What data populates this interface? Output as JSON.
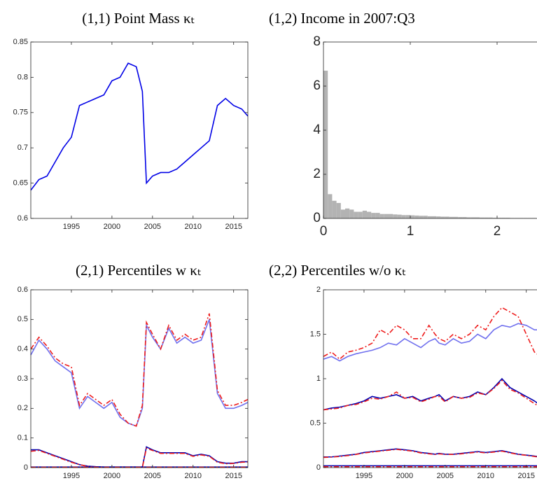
{
  "chart_data": [
    {
      "type": "line",
      "title": "(1,1) Point Mass κₜ",
      "x": [
        1990,
        1991,
        1992,
        1993,
        1994,
        1995,
        1996,
        1997,
        1998,
        1999,
        2000,
        2001,
        2002,
        2003,
        2003.75,
        2004.25,
        2005,
        2006,
        2007,
        2008,
        2009,
        2010,
        2011,
        2012,
        2013,
        2014,
        2015,
        2016,
        2016.75
      ],
      "series": [
        {
          "color": "#0000e6",
          "line_style": "solid",
          "values": [
            0.64,
            0.655,
            0.66,
            0.68,
            0.7,
            0.715,
            0.76,
            0.765,
            0.77,
            0.775,
            0.795,
            0.8,
            0.82,
            0.815,
            0.78,
            0.65,
            0.66,
            0.665,
            0.665,
            0.67,
            0.68,
            0.69,
            0.7,
            0.71,
            0.76,
            0.77,
            0.76,
            0.755,
            0.745
          ]
        }
      ],
      "xlim": [
        1990,
        2016.75
      ],
      "xticks": [
        1995,
        2000,
        2005,
        2010,
        2015
      ],
      "ylim": [
        0.6,
        0.85
      ],
      "yticks": [
        0.6,
        0.65,
        0.7,
        0.75,
        0.8,
        0.85
      ]
    },
    {
      "type": "histogram",
      "title": "(1,2) Income in 2007:Q3",
      "color": "#b3b3b3",
      "bins": [
        0,
        0.05,
        0.1,
        0.15,
        0.2,
        0.25,
        0.3,
        0.35,
        0.4,
        0.45,
        0.5,
        0.55,
        0.6,
        0.65,
        0.7,
        0.75,
        0.8,
        0.85,
        0.9,
        0.95,
        1,
        1.05,
        1.1,
        1.15,
        1.2,
        1.25,
        1.3,
        1.35,
        1.4,
        1.45,
        1.5,
        1.55,
        1.6,
        1.65,
        1.7,
        1.75,
        1.8,
        1.85,
        1.9,
        1.95,
        2,
        2.05,
        2.1,
        2.15,
        2.2,
        2.25,
        2.3,
        2.35,
        2.4,
        2.45
      ],
      "values": [
        6.7,
        1.1,
        0.8,
        0.7,
        0.4,
        0.45,
        0.4,
        0.3,
        0.3,
        0.35,
        0.3,
        0.25,
        0.25,
        0.2,
        0.2,
        0.2,
        0.18,
        0.17,
        0.15,
        0.15,
        0.14,
        0.13,
        0.12,
        0.12,
        0.1,
        0.1,
        0.09,
        0.08,
        0.08,
        0.07,
        0.07,
        0.06,
        0.06,
        0.05,
        0.05,
        0.05,
        0.04,
        0.04,
        0.04,
        0.03,
        0.03,
        0.03,
        0.03,
        0.02,
        0.02,
        0.02,
        0.02,
        0.02,
        0.02
      ],
      "xlim": [
        0,
        2.5
      ],
      "xticks": [
        0,
        1,
        2
      ],
      "ylim": [
        0,
        8
      ],
      "yticks": [
        0,
        2,
        4,
        6,
        8
      ]
    },
    {
      "type": "line",
      "title": "(2,1) Percentiles w κₜ",
      "x": [
        1990,
        1991,
        1992,
        1993,
        1994,
        1995,
        1996,
        1997,
        1998,
        1999,
        2000,
        2001,
        2002,
        2003,
        2003.75,
        2004.25,
        2005,
        2006,
        2007,
        2008,
        2009,
        2010,
        2011,
        2012,
        2013,
        2014,
        2015,
        2016,
        2016.75
      ],
      "series": [
        {
          "color": "#7070ee",
          "line_style": "solid",
          "values": [
            0.38,
            0.43,
            0.4,
            0.36,
            0.34,
            0.32,
            0.2,
            0.24,
            0.22,
            0.2,
            0.22,
            0.17,
            0.15,
            0.14,
            0.2,
            0.48,
            0.44,
            0.4,
            0.47,
            0.42,
            0.44,
            0.42,
            0.43,
            0.5,
            0.25,
            0.2,
            0.2,
            0.21,
            0.22
          ]
        },
        {
          "color": "#ee1c1c",
          "line_style": "dash-dot",
          "values": [
            0.4,
            0.44,
            0.41,
            0.37,
            0.35,
            0.34,
            0.21,
            0.25,
            0.23,
            0.21,
            0.23,
            0.18,
            0.15,
            0.14,
            0.21,
            0.49,
            0.45,
            0.4,
            0.48,
            0.43,
            0.45,
            0.43,
            0.44,
            0.52,
            0.26,
            0.21,
            0.21,
            0.22,
            0.23
          ]
        },
        {
          "color": "#0000b0",
          "line_style": "solid",
          "values": [
            0.06,
            0.06,
            0.05,
            0.04,
            0.03,
            0.02,
            0.01,
            0.005,
            0.003,
            0.002,
            0.002,
            0.002,
            0.002,
            0.002,
            0.002,
            0.07,
            0.06,
            0.05,
            0.05,
            0.05,
            0.05,
            0.04,
            0.045,
            0.04,
            0.02,
            0.015,
            0.015,
            0.02,
            0.02
          ]
        },
        {
          "color": "#ee1c1c",
          "line_style": "dash-dot",
          "values": [
            0.055,
            0.058,
            0.048,
            0.038,
            0.028,
            0.018,
            0.01,
            0.004,
            0.002,
            0.001,
            0.001,
            0.001,
            0.001,
            0.001,
            0.001,
            0.065,
            0.058,
            0.048,
            0.048,
            0.048,
            0.048,
            0.038,
            0.043,
            0.038,
            0.018,
            0.013,
            0.014,
            0.018,
            0.019
          ]
        },
        {
          "color": "#0000b0",
          "line_style": "solid",
          "values": [
            0.002,
            0.002,
            0.002,
            0.002,
            0.002,
            0.002,
            0.002,
            0.002,
            0.002,
            0.002,
            0.002,
            0.002,
            0.002,
            0.002,
            0.002,
            0.002,
            0.002,
            0.002,
            0.002,
            0.002,
            0.002,
            0.002,
            0.002,
            0.002,
            0.002,
            0.002,
            0.002,
            0.002,
            0.002
          ]
        },
        {
          "color": "#ee1c1c",
          "line_style": "dash-dot",
          "values": [
            0.001,
            0.001,
            0.001,
            0.001,
            0.001,
            0.001,
            0.001,
            0.001,
            0.001,
            0.001,
            0.001,
            0.001,
            0.001,
            0.001,
            0.001,
            0.001,
            0.001,
            0.001,
            0.001,
            0.001,
            0.001,
            0.001,
            0.001,
            0.001,
            0.001,
            0.001,
            0.001,
            0.001,
            0.001
          ]
        }
      ],
      "xlim": [
        1990,
        2016.75
      ],
      "xticks": [
        1995,
        2000,
        2005,
        2010,
        2015
      ],
      "ylim": [
        0,
        0.6
      ],
      "yticks": [
        0,
        0.1,
        0.2,
        0.3,
        0.4,
        0.5,
        0.6
      ]
    },
    {
      "type": "line",
      "title": "(2,2) Percentiles w/o κₜ",
      "x": [
        1990,
        1991,
        1992,
        1993,
        1994,
        1995,
        1996,
        1997,
        1998,
        1999,
        2000,
        2001,
        2002,
        2003,
        2003.75,
        2004.25,
        2005,
        2006,
        2007,
        2008,
        2009,
        2010,
        2011,
        2012,
        2013,
        2014,
        2015,
        2016,
        2016.75
      ],
      "series": [
        {
          "color": "#7070ee",
          "line_style": "solid",
          "values": [
            1.22,
            1.25,
            1.2,
            1.25,
            1.28,
            1.3,
            1.32,
            1.35,
            1.4,
            1.38,
            1.45,
            1.4,
            1.35,
            1.42,
            1.45,
            1.4,
            1.38,
            1.45,
            1.4,
            1.42,
            1.5,
            1.45,
            1.55,
            1.6,
            1.58,
            1.62,
            1.6,
            1.55,
            1.55
          ]
        },
        {
          "color": "#ee1c1c",
          "line_style": "dash-dot",
          "values": [
            1.25,
            1.3,
            1.22,
            1.3,
            1.32,
            1.35,
            1.4,
            1.55,
            1.5,
            1.6,
            1.55,
            1.45,
            1.45,
            1.6,
            1.5,
            1.45,
            1.42,
            1.5,
            1.45,
            1.5,
            1.6,
            1.55,
            1.7,
            1.8,
            1.75,
            1.7,
            1.5,
            1.3,
            1.25
          ]
        },
        {
          "color": "#0000b0",
          "line_style": "solid",
          "values": [
            0.65,
            0.67,
            0.68,
            0.7,
            0.72,
            0.75,
            0.8,
            0.78,
            0.8,
            0.82,
            0.78,
            0.8,
            0.75,
            0.78,
            0.8,
            0.82,
            0.75,
            0.8,
            0.78,
            0.8,
            0.85,
            0.82,
            0.9,
            1.0,
            0.9,
            0.85,
            0.8,
            0.75,
            0.7
          ]
        },
        {
          "color": "#ee1c1c",
          "line_style": "dash-dot",
          "values": [
            0.65,
            0.66,
            0.67,
            0.7,
            0.71,
            0.74,
            0.78,
            0.77,
            0.8,
            0.85,
            0.78,
            0.79,
            0.74,
            0.77,
            0.8,
            0.8,
            0.74,
            0.8,
            0.78,
            0.79,
            0.84,
            0.82,
            0.89,
            0.98,
            0.88,
            0.84,
            0.78,
            0.72,
            0.68
          ]
        },
        {
          "color": "#0000b0",
          "line_style": "solid",
          "values": [
            0.12,
            0.12,
            0.13,
            0.14,
            0.15,
            0.17,
            0.18,
            0.19,
            0.2,
            0.21,
            0.2,
            0.19,
            0.17,
            0.16,
            0.15,
            0.16,
            0.15,
            0.15,
            0.16,
            0.17,
            0.18,
            0.17,
            0.18,
            0.19,
            0.17,
            0.15,
            0.14,
            0.13,
            0.12
          ]
        },
        {
          "color": "#ee1c1c",
          "line_style": "dash-dot",
          "values": [
            0.115,
            0.118,
            0.125,
            0.135,
            0.148,
            0.165,
            0.175,
            0.185,
            0.195,
            0.205,
            0.195,
            0.185,
            0.165,
            0.155,
            0.148,
            0.155,
            0.148,
            0.148,
            0.155,
            0.165,
            0.175,
            0.165,
            0.175,
            0.185,
            0.165,
            0.148,
            0.138,
            0.125,
            0.115
          ]
        },
        {
          "color": "#0000b0",
          "line_style": "solid",
          "values": [
            0.02,
            0.02,
            0.02,
            0.02,
            0.02,
            0.02,
            0.02,
            0.02,
            0.02,
            0.02,
            0.02,
            0.02,
            0.02,
            0.02,
            0.02,
            0.02,
            0.02,
            0.02,
            0.02,
            0.02,
            0.02,
            0.02,
            0.02,
            0.02,
            0.02,
            0.02,
            0.02,
            0.02,
            0.02
          ]
        },
        {
          "color": "#ee1c1c",
          "line_style": "dash-dot",
          "values": [
            0.01,
            0.01,
            0.01,
            0.01,
            0.01,
            0.01,
            0.01,
            0.01,
            0.01,
            0.01,
            0.01,
            0.01,
            0.01,
            0.01,
            0.01,
            0.01,
            0.01,
            0.01,
            0.01,
            0.01,
            0.01,
            0.01,
            0.01,
            0.01,
            0.01,
            0.01,
            0.01,
            0.01,
            0.01
          ]
        }
      ],
      "xlim": [
        1990,
        2016.75
      ],
      "xticks": [
        1995,
        2000,
        2005,
        2010,
        2015
      ],
      "ylim": [
        0,
        2
      ],
      "yticks": [
        0,
        0.5,
        1,
        1.5,
        2
      ]
    }
  ]
}
